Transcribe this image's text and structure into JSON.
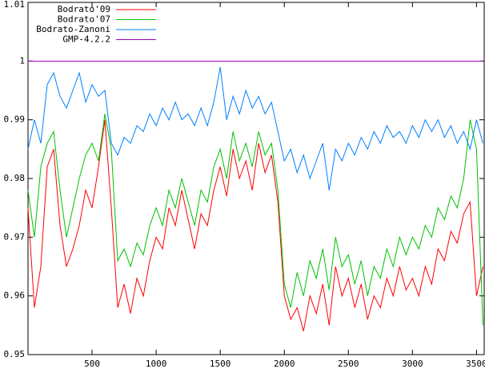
{
  "chart_data": {
    "type": "line",
    "x": [
      0,
      50,
      100,
      150,
      200,
      250,
      300,
      350,
      400,
      450,
      500,
      550,
      600,
      650,
      700,
      750,
      800,
      850,
      900,
      950,
      1000,
      1050,
      1100,
      1150,
      1200,
      1250,
      1300,
      1350,
      1400,
      1450,
      1500,
      1550,
      1600,
      1650,
      1700,
      1750,
      1800,
      1850,
      1900,
      1950,
      2000,
      2050,
      2100,
      2150,
      2200,
      2250,
      2300,
      2350,
      2400,
      2450,
      2500,
      2550,
      2600,
      2650,
      2700,
      2750,
      2800,
      2850,
      2900,
      2950,
      3000,
      3050,
      3100,
      3150,
      3200,
      3250,
      3300,
      3350,
      3400,
      3450,
      3500,
      3550
    ],
    "series": [
      {
        "name": "Bodrato'09",
        "color": "#ff0000",
        "values": [
          0.975,
          0.958,
          0.965,
          0.982,
          0.985,
          0.972,
          0.965,
          0.968,
          0.972,
          0.978,
          0.975,
          0.982,
          0.99,
          0.975,
          0.958,
          0.962,
          0.957,
          0.963,
          0.96,
          0.966,
          0.97,
          0.968,
          0.975,
          0.972,
          0.978,
          0.973,
          0.968,
          0.974,
          0.972,
          0.978,
          0.982,
          0.977,
          0.985,
          0.98,
          0.983,
          0.978,
          0.986,
          0.981,
          0.984,
          0.976,
          0.96,
          0.956,
          0.958,
          0.954,
          0.96,
          0.957,
          0.962,
          0.955,
          0.965,
          0.96,
          0.963,
          0.958,
          0.962,
          0.956,
          0.96,
          0.958,
          0.963,
          0.96,
          0.965,
          0.961,
          0.963,
          0.96,
          0.965,
          0.962,
          0.968,
          0.966,
          0.971,
          0.969,
          0.974,
          0.976,
          0.96,
          0.965
        ]
      },
      {
        "name": "Bodrato'07",
        "color": "#00c000",
        "values": [
          0.978,
          0.97,
          0.982,
          0.986,
          0.988,
          0.978,
          0.97,
          0.975,
          0.98,
          0.984,
          0.986,
          0.983,
          0.991,
          0.985,
          0.966,
          0.968,
          0.965,
          0.969,
          0.967,
          0.972,
          0.975,
          0.972,
          0.978,
          0.975,
          0.98,
          0.976,
          0.972,
          0.978,
          0.976,
          0.982,
          0.985,
          0.98,
          0.988,
          0.983,
          0.986,
          0.982,
          0.988,
          0.984,
          0.986,
          0.978,
          0.962,
          0.958,
          0.964,
          0.96,
          0.966,
          0.963,
          0.968,
          0.961,
          0.97,
          0.965,
          0.967,
          0.962,
          0.966,
          0.96,
          0.965,
          0.963,
          0.968,
          0.965,
          0.97,
          0.967,
          0.97,
          0.968,
          0.972,
          0.97,
          0.975,
          0.973,
          0.977,
          0.975,
          0.98,
          0.99,
          0.985,
          0.955
        ]
      },
      {
        "name": "Bodrato-Zanoni",
        "color": "#0080ff",
        "values": [
          0.985,
          0.99,
          0.986,
          0.996,
          0.998,
          0.994,
          0.992,
          0.995,
          0.998,
          0.993,
          0.996,
          0.994,
          0.995,
          0.986,
          0.984,
          0.987,
          0.986,
          0.989,
          0.988,
          0.991,
          0.989,
          0.992,
          0.99,
          0.993,
          0.99,
          0.991,
          0.989,
          0.992,
          0.989,
          0.993,
          0.999,
          0.99,
          0.994,
          0.991,
          0.995,
          0.992,
          0.994,
          0.991,
          0.993,
          0.988,
          0.983,
          0.985,
          0.981,
          0.984,
          0.98,
          0.983,
          0.986,
          0.978,
          0.985,
          0.983,
          0.986,
          0.984,
          0.987,
          0.985,
          0.988,
          0.986,
          0.989,
          0.987,
          0.988,
          0.986,
          0.989,
          0.987,
          0.99,
          0.988,
          0.99,
          0.987,
          0.989,
          0.986,
          0.988,
          0.985,
          0.99,
          0.986
        ]
      },
      {
        "name": "GMP-4.2.2",
        "color": "#a000c0",
        "values": [
          1,
          1,
          1,
          1,
          1,
          1,
          1,
          1,
          1,
          1,
          1,
          1,
          1,
          1,
          1,
          1,
          1,
          1,
          1,
          1,
          1,
          1,
          1,
          1,
          1,
          1,
          1,
          1,
          1,
          1,
          1,
          1,
          1,
          1,
          1,
          1,
          1,
          1,
          1,
          1,
          1,
          1,
          1,
          1,
          1,
          1,
          1,
          1,
          1,
          1,
          1,
          1,
          1,
          1,
          1,
          1,
          1,
          1,
          1,
          1,
          1,
          1,
          1,
          1,
          1,
          1,
          1,
          1,
          1,
          1,
          1,
          1
        ]
      }
    ],
    "xlim": [
      0,
      3560
    ],
    "xticks": [
      500,
      1000,
      1500,
      2000,
      2500,
      3000,
      3500
    ],
    "ylim": [
      0.95,
      1.01
    ],
    "yticks": [
      0.95,
      0.96,
      0.97,
      0.98,
      0.99,
      1,
      1.01
    ],
    "legend": "top-left"
  }
}
